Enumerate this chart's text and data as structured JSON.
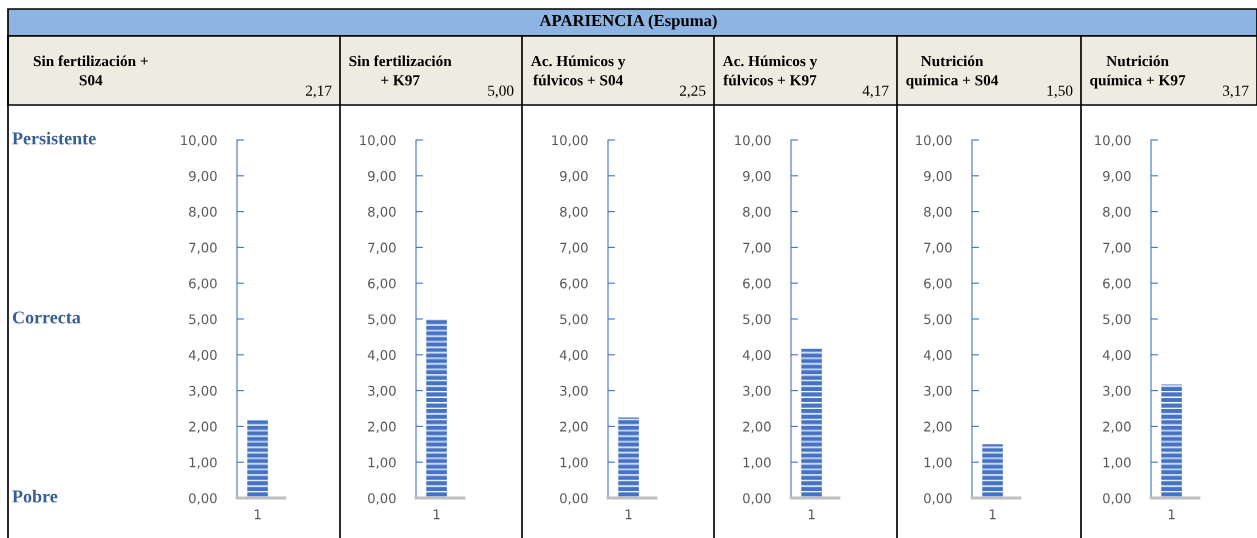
{
  "chart_data": [
    {
      "type": "bar",
      "title": "Sin fertilización +\nS04",
      "categories": [
        "1"
      ],
      "values": [
        2.17
      ],
      "color": "#4472c4",
      "ylim": [
        0,
        10
      ],
      "yticks": [
        {
          "value": 0,
          "label": "0,00"
        },
        {
          "value": 1,
          "label": "1,00"
        },
        {
          "value": 2,
          "label": "2,00"
        },
        {
          "value": 3,
          "label": "3,00"
        },
        {
          "value": 4,
          "label": "4,00"
        },
        {
          "value": 5,
          "label": "5,00"
        },
        {
          "value": 6,
          "label": "6,00"
        },
        {
          "value": 7,
          "label": "7,00"
        },
        {
          "value": 8,
          "label": "8,00"
        },
        {
          "value": 9,
          "label": "9,00"
        },
        {
          "value": 10,
          "label": "10,00"
        }
      ],
      "annotations": [
        "2,17",
        "APARIENCIA (Espuma)",
        "Persistente",
        "Correcta",
        "Pobre"
      ]
    },
    {
      "type": "bar",
      "title": "Sin fertilización\n+ K97",
      "categories": [
        "1"
      ],
      "values": [
        5.0
      ],
      "color": "#4472c4",
      "ylim": [
        0,
        10
      ],
      "yticks": [
        {
          "value": 0,
          "label": "0,00"
        },
        {
          "value": 1,
          "label": "1,00"
        },
        {
          "value": 2,
          "label": "2,00"
        },
        {
          "value": 3,
          "label": "3,00"
        },
        {
          "value": 4,
          "label": "4,00"
        },
        {
          "value": 5,
          "label": "5,00"
        },
        {
          "value": 6,
          "label": "6,00"
        },
        {
          "value": 7,
          "label": "7,00"
        },
        {
          "value": 8,
          "label": "8,00"
        },
        {
          "value": 9,
          "label": "9,00"
        },
        {
          "value": 10,
          "label": "10,00"
        }
      ],
      "annotations": [
        "5,00"
      ]
    },
    {
      "type": "bar",
      "title": "Ac. Húmicos y\nfúlvicos + S04",
      "categories": [
        "1"
      ],
      "values": [
        2.25
      ],
      "color": "#4472c4",
      "ylim": [
        0,
        10
      ],
      "yticks": [
        {
          "value": 0,
          "label": "0,00"
        },
        {
          "value": 1,
          "label": "1,00"
        },
        {
          "value": 2,
          "label": "2,00"
        },
        {
          "value": 3,
          "label": "3,00"
        },
        {
          "value": 4,
          "label": "4,00"
        },
        {
          "value": 5,
          "label": "5,00"
        },
        {
          "value": 6,
          "label": "6,00"
        },
        {
          "value": 7,
          "label": "7,00"
        },
        {
          "value": 8,
          "label": "8,00"
        },
        {
          "value": 9,
          "label": "9,00"
        },
        {
          "value": 10,
          "label": "10,00"
        }
      ],
      "annotations": [
        "2,25"
      ]
    },
    {
      "type": "bar",
      "title": "Ac. Húmicos y\nfúlvicos + K97",
      "categories": [
        "1"
      ],
      "values": [
        4.17
      ],
      "color": "#4472c4",
      "ylim": [
        0,
        10
      ],
      "yticks": [
        {
          "value": 0,
          "label": "0,00"
        },
        {
          "value": 1,
          "label": "1,00"
        },
        {
          "value": 2,
          "label": "2,00"
        },
        {
          "value": 3,
          "label": "3,00"
        },
        {
          "value": 4,
          "label": "4,00"
        },
        {
          "value": 5,
          "label": "5,00"
        },
        {
          "value": 6,
          "label": "6,00"
        },
        {
          "value": 7,
          "label": "7,00"
        },
        {
          "value": 8,
          "label": "8,00"
        },
        {
          "value": 9,
          "label": "9,00"
        },
        {
          "value": 10,
          "label": "10,00"
        }
      ],
      "annotations": [
        "4,17"
      ]
    },
    {
      "type": "bar",
      "title": "Nutrición\nquímica + S04",
      "categories": [
        "1"
      ],
      "values": [
        1.5
      ],
      "color": "#4472c4",
      "ylim": [
        0,
        10
      ],
      "yticks": [
        {
          "value": 0,
          "label": "0,00"
        },
        {
          "value": 1,
          "label": "1,00"
        },
        {
          "value": 2,
          "label": "2,00"
        },
        {
          "value": 3,
          "label": "3,00"
        },
        {
          "value": 4,
          "label": "4,00"
        },
        {
          "value": 5,
          "label": "5,00"
        },
        {
          "value": 6,
          "label": "6,00"
        },
        {
          "value": 7,
          "label": "7,00"
        },
        {
          "value": 8,
          "label": "8,00"
        },
        {
          "value": 9,
          "label": "9,00"
        },
        {
          "value": 10,
          "label": "10,00"
        }
      ],
      "annotations": [
        "1,50"
      ]
    },
    {
      "type": "bar",
      "title": "Nutrición\nquímica + K97",
      "categories": [
        "1"
      ],
      "values": [
        3.17
      ],
      "color": "#4472c4",
      "ylim": [
        0,
        10
      ],
      "yticks": [
        {
          "value": 0,
          "label": "0,00"
        },
        {
          "value": 1,
          "label": "1,00"
        },
        {
          "value": 2,
          "label": "2,00"
        },
        {
          "value": 3,
          "label": "3,00"
        },
        {
          "value": 4,
          "label": "4,00"
        },
        {
          "value": 5,
          "label": "5,00"
        },
        {
          "value": 6,
          "label": "6,00"
        },
        {
          "value": 7,
          "label": "7,00"
        },
        {
          "value": 8,
          "label": "8,00"
        },
        {
          "value": 9,
          "label": "9,00"
        },
        {
          "value": 10,
          "label": "10,00"
        }
      ],
      "annotations": [
        "3,17"
      ]
    }
  ]
}
